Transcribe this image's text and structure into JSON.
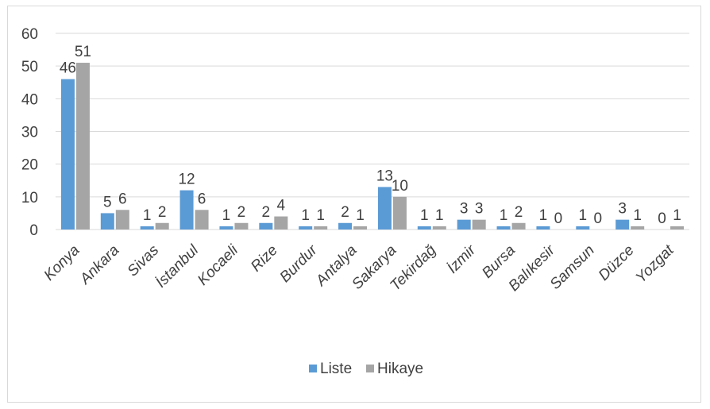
{
  "chart_data": {
    "type": "bar",
    "categories": [
      "Konya",
      "Ankara",
      "Sivas",
      "İstanbul",
      "Kocaeli",
      "Rize",
      "Burdur",
      "Antalya",
      "Sakarya",
      "Tekirdağ",
      "İzmir",
      "Bursa",
      "Balıkesir",
      "Samsun",
      "Düzce",
      "Yozgat"
    ],
    "series": [
      {
        "name": "Liste",
        "values": [
          46,
          5,
          1,
          12,
          1,
          2,
          1,
          2,
          13,
          1,
          3,
          1,
          1,
          1,
          3,
          0
        ],
        "color": "#5b9bd5"
      },
      {
        "name": "Hikaye",
        "values": [
          51,
          6,
          2,
          6,
          2,
          4,
          1,
          1,
          10,
          1,
          3,
          2,
          0,
          0,
          1,
          1
        ],
        "color": "#a5a5a5"
      }
    ],
    "yticks": [
      0,
      10,
      20,
      30,
      40,
      50,
      60
    ],
    "ylim": [
      0,
      60
    ],
    "grid": true,
    "legend": "bottom",
    "gridColor": "#d9d9d9"
  }
}
